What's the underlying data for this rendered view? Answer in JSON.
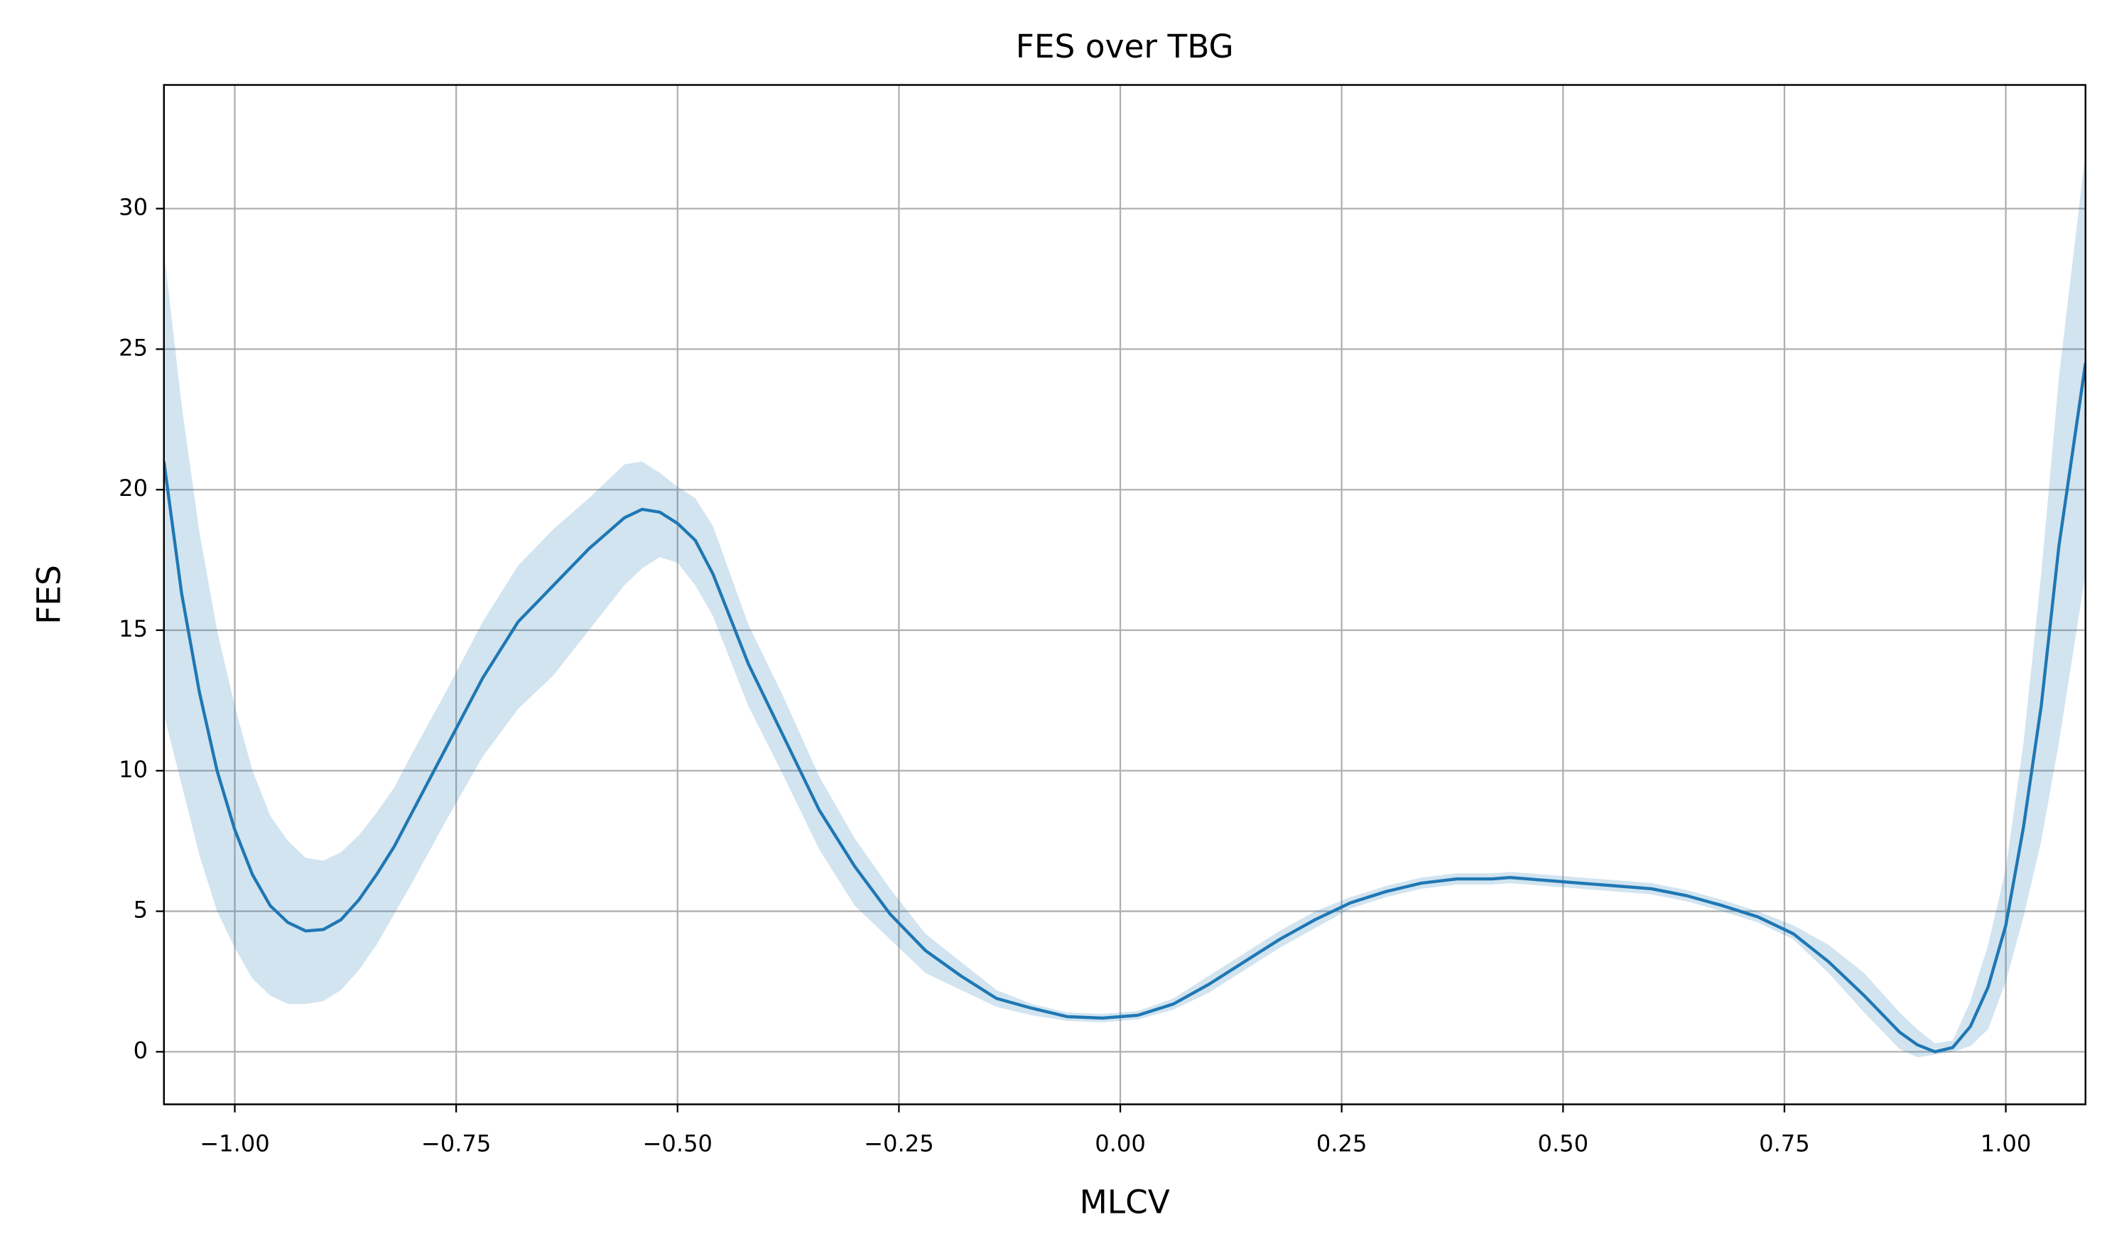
{
  "chart_data": {
    "type": "line",
    "title": "FES over TBG",
    "xlabel": "MLCV",
    "ylabel": "FES",
    "grid": true,
    "xlim": [
      -1.08,
      1.09
    ],
    "ylim": [
      -1.87,
      34.4
    ],
    "xticks": [
      {
        "value": -1.0,
        "label": "−1.00"
      },
      {
        "value": -0.75,
        "label": "−0.75"
      },
      {
        "value": -0.5,
        "label": "−0.50"
      },
      {
        "value": -0.25,
        "label": "−0.25"
      },
      {
        "value": 0.0,
        "label": "0.00"
      },
      {
        "value": 0.25,
        "label": "0.25"
      },
      {
        "value": 0.5,
        "label": "0.50"
      },
      {
        "value": 0.75,
        "label": "0.75"
      },
      {
        "value": 1.0,
        "label": "1.00"
      }
    ],
    "yticks": [
      0,
      5,
      10,
      15,
      20,
      25,
      30
    ],
    "x": [
      -1.08,
      -1.06,
      -1.04,
      -1.02,
      -1.0,
      -0.98,
      -0.96,
      -0.94,
      -0.92,
      -0.9,
      -0.88,
      -0.86,
      -0.84,
      -0.82,
      -0.8,
      -0.76,
      -0.72,
      -0.68,
      -0.64,
      -0.6,
      -0.56,
      -0.54,
      -0.52,
      -0.5,
      -0.48,
      -0.46,
      -0.42,
      -0.38,
      -0.34,
      -0.3,
      -0.26,
      -0.22,
      -0.18,
      -0.14,
      -0.1,
      -0.06,
      -0.02,
      0.02,
      0.06,
      0.1,
      0.14,
      0.18,
      0.22,
      0.26,
      0.3,
      0.34,
      0.38,
      0.42,
      0.44,
      0.48,
      0.52,
      0.56,
      0.6,
      0.64,
      0.68,
      0.72,
      0.76,
      0.8,
      0.84,
      0.88,
      0.9,
      0.92,
      0.94,
      0.96,
      0.98,
      1.0,
      1.02,
      1.04,
      1.06,
      1.09
    ],
    "series": [
      {
        "color": "#1f77b4",
        "values": [
          21,
          16.3,
          12.8,
          10,
          7.9,
          6.3,
          5.2,
          4.6,
          4.3,
          4.35,
          4.7,
          5.4,
          6.3,
          7.3,
          8.5,
          10.9,
          13.3,
          15.3,
          16.6,
          17.9,
          19.0,
          19.3,
          19.2,
          18.8,
          18.2,
          17.0,
          13.8,
          11.2,
          8.6,
          6.6,
          4.9,
          3.6,
          2.7,
          1.9,
          1.55,
          1.25,
          1.2,
          1.3,
          1.7,
          2.4,
          3.2,
          4.0,
          4.7,
          5.3,
          5.7,
          6.0,
          6.15,
          6.15,
          6.2,
          6.1,
          6.0,
          5.9,
          5.8,
          5.55,
          5.2,
          4.8,
          4.2,
          3.2,
          2.0,
          0.7,
          0.25,
          0.0,
          0.15,
          0.9,
          2.3,
          4.5,
          8.0,
          12.3,
          18,
          24.5
        ]
      }
    ],
    "band_color": "#1f77b4",
    "upper": [
      28.5,
      23,
      18.5,
      15,
      12.3,
      10,
      8.4,
      7.5,
      6.9,
      6.8,
      7.1,
      7.7,
      8.5,
      9.4,
      10.6,
      12.9,
      15.3,
      17.3,
      18.6,
      19.7,
      20.9,
      21,
      20.6,
      20.1,
      19.7,
      18.7,
      15.2,
      12.6,
      9.8,
      7.6,
      5.8,
      4.2,
      3.2,
      2.2,
      1.7,
      1.4,
      1.35,
      1.45,
      1.9,
      2.7,
      3.5,
      4.3,
      5.0,
      5.5,
      5.9,
      6.2,
      6.35,
      6.35,
      6.4,
      6.3,
      6.2,
      6.1,
      6.0,
      5.75,
      5.4,
      5.0,
      4.5,
      3.8,
      2.8,
      1.4,
      0.8,
      0.3,
      0.4,
      1.8,
      3.8,
      6.5,
      11,
      17,
      24,
      32
    ],
    "lower": [
      12,
      9.5,
      7,
      5,
      3.7,
      2.6,
      2,
      1.7,
      1.7,
      1.8,
      2.2,
      2.9,
      3.8,
      4.9,
      6,
      8.3,
      10.5,
      12.2,
      13.4,
      15,
      16.6,
      17.2,
      17.6,
      17.4,
      16.6,
      15.5,
      12.3,
      9.8,
      7.2,
      5.2,
      4.0,
      2.8,
      2.2,
      1.6,
      1.3,
      1.1,
      1.05,
      1.15,
      1.5,
      2.1,
      2.9,
      3.7,
      4.4,
      5.1,
      5.5,
      5.8,
      5.95,
      5.95,
      6.0,
      5.9,
      5.8,
      5.7,
      5.6,
      5.35,
      5.0,
      4.6,
      4.0,
      2.8,
      1.4,
      0.1,
      -0.2,
      -0.1,
      0,
      0.2,
      0.8,
      2.5,
      4.8,
      7.5,
      11,
      17
    ]
  }
}
